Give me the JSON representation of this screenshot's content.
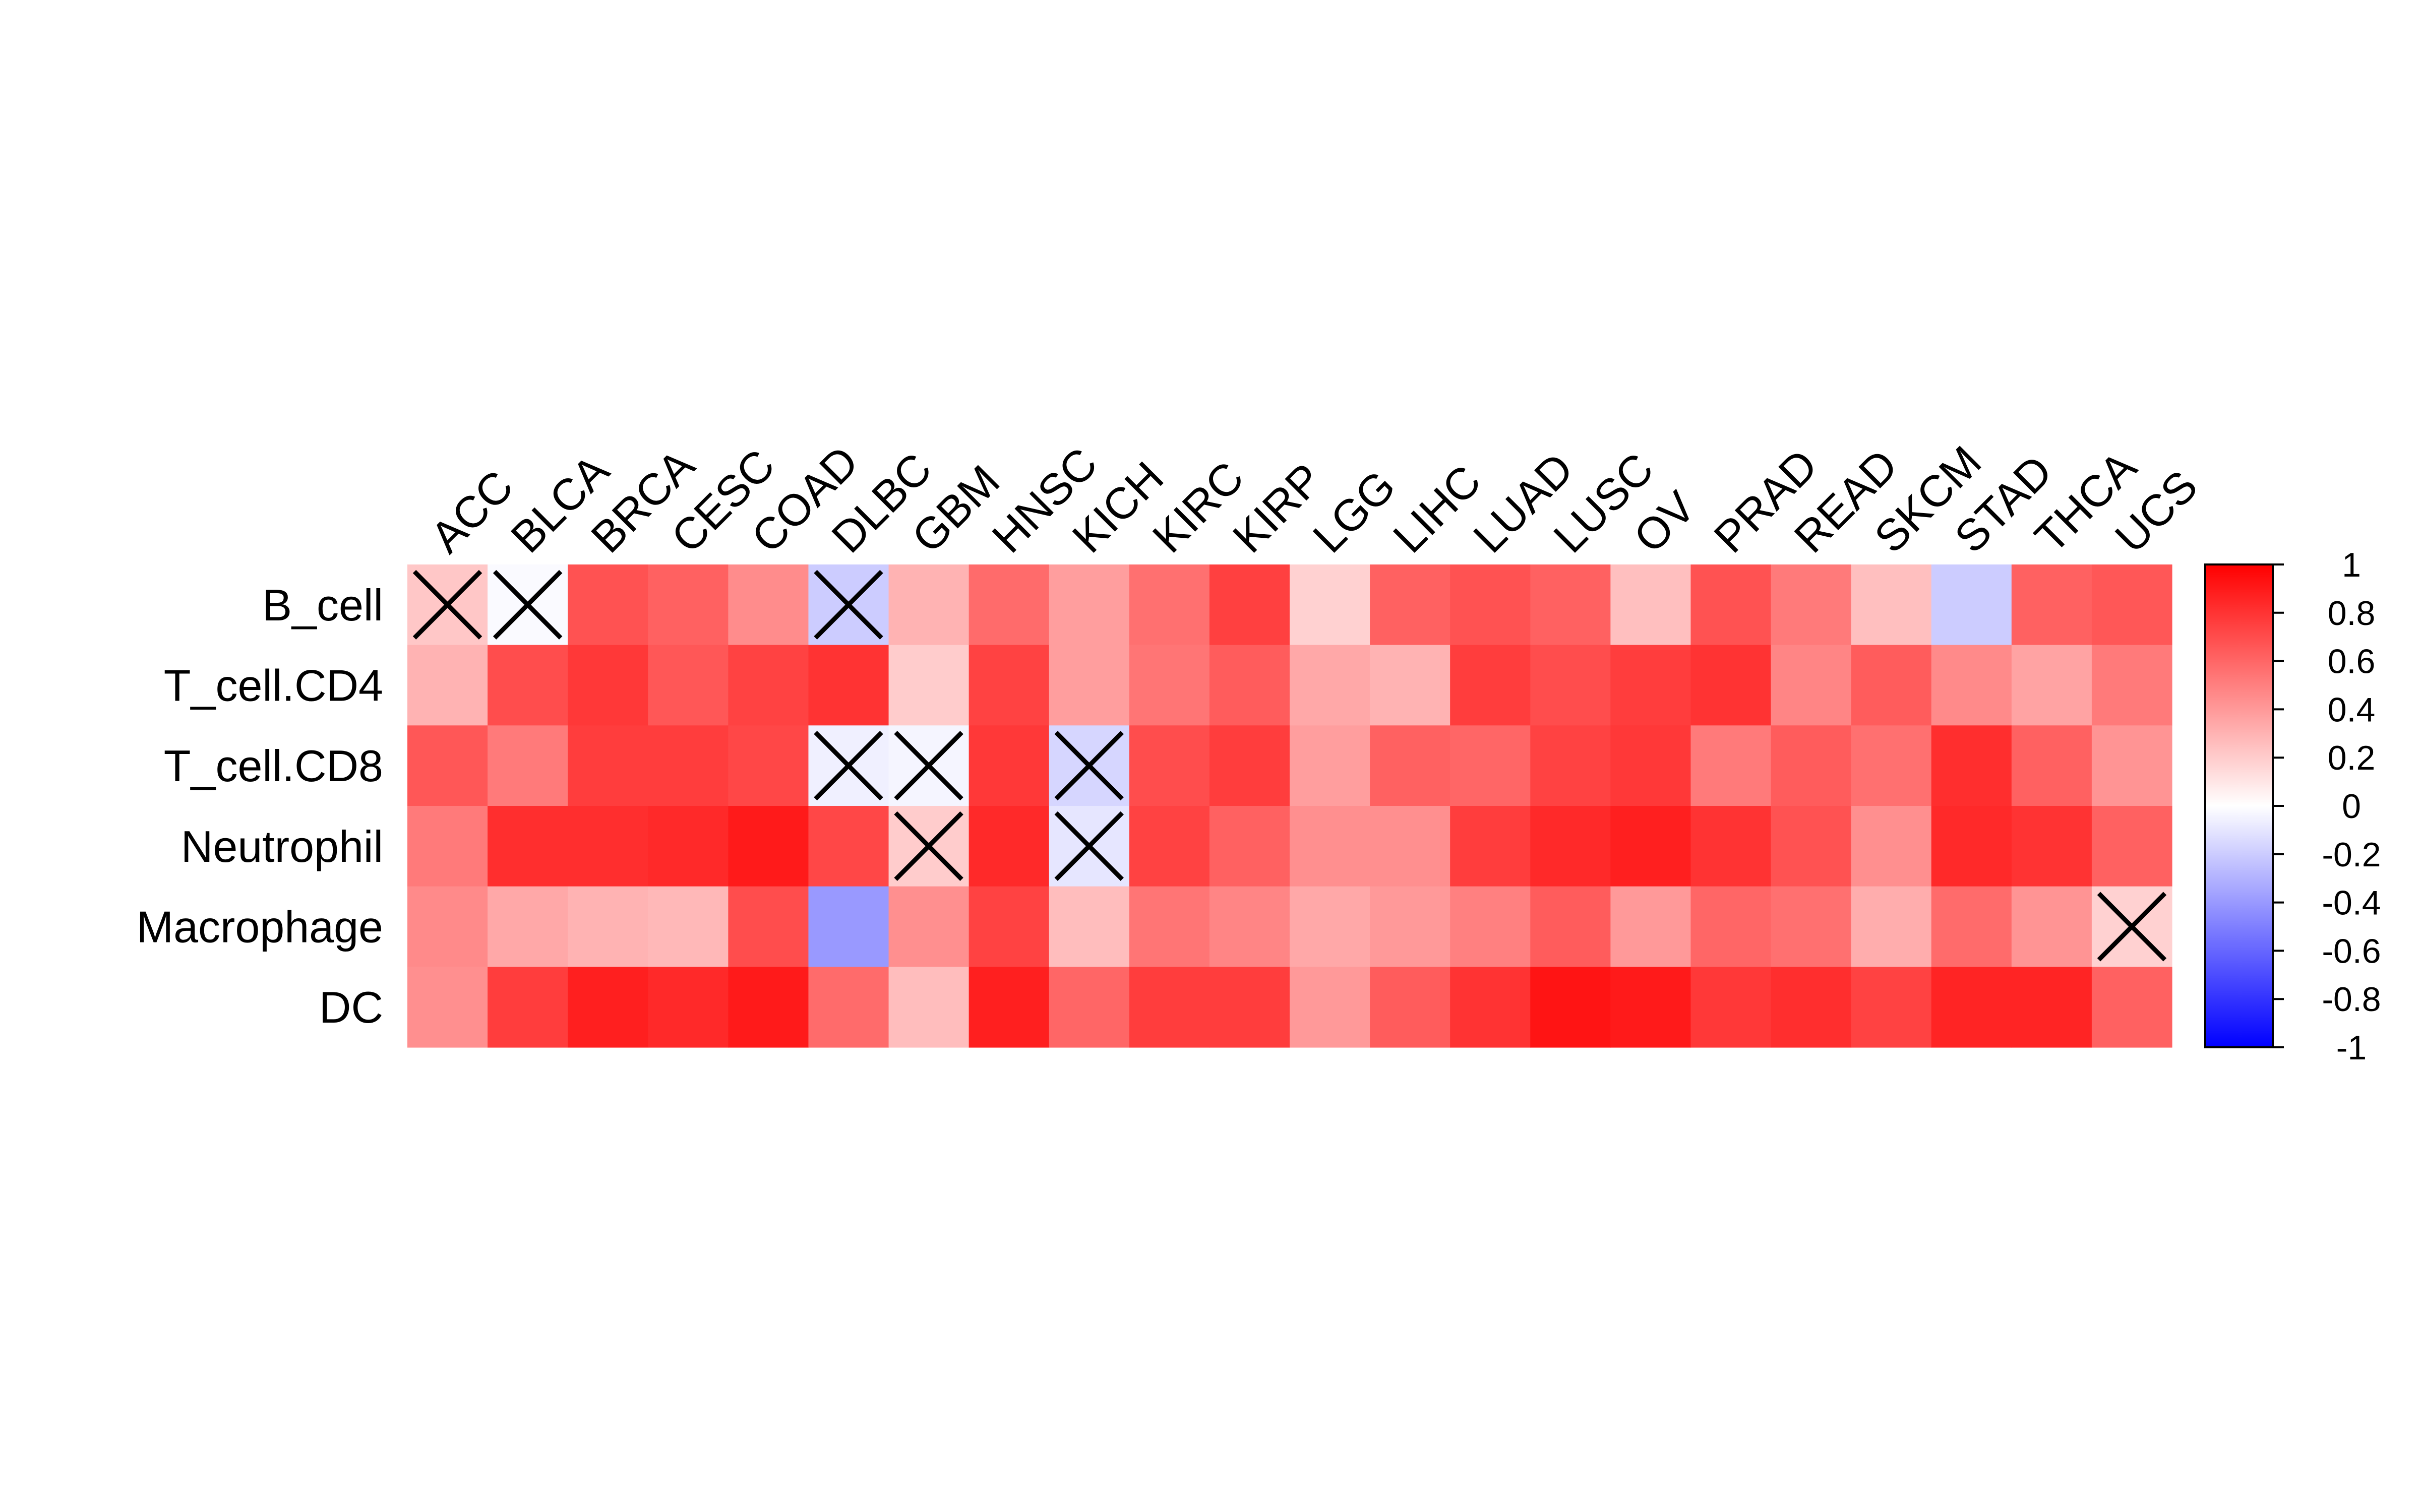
{
  "chart_data": {
    "type": "heatmap",
    "title": "",
    "xlabel": "",
    "ylabel": "",
    "columns": [
      "ACC",
      "BLCA",
      "BRCA",
      "CESC",
      "COAD",
      "DLBC",
      "GBM",
      "HNSC",
      "KICH",
      "KIRC",
      "KIRP",
      "LGG",
      "LIHC",
      "LUAD",
      "LUSC",
      "OV",
      "PRAD",
      "READ",
      "SKCM",
      "STAD",
      "THCA",
      "UCS"
    ],
    "rows": [
      "B_cell",
      "T_cell.CD4",
      "T_cell.CD8",
      "Neutrophil",
      "Macrophage",
      "DC"
    ],
    "values": [
      [
        0.22,
        -0.02,
        0.68,
        0.62,
        0.45,
        -0.2,
        0.3,
        0.58,
        0.38,
        0.56,
        0.75,
        0.18,
        0.62,
        0.68,
        0.62,
        0.25,
        0.68,
        0.52,
        0.25,
        -0.2,
        0.62,
        0.66
      ],
      [
        0.3,
        0.7,
        0.78,
        0.66,
        0.74,
        0.8,
        0.2,
        0.74,
        0.38,
        0.54,
        0.64,
        0.34,
        0.3,
        0.76,
        0.7,
        0.76,
        0.8,
        0.48,
        0.64,
        0.46,
        0.36,
        0.52
      ],
      [
        0.66,
        0.52,
        0.76,
        0.76,
        0.72,
        -0.06,
        -0.04,
        0.78,
        -0.16,
        0.7,
        0.76,
        0.38,
        0.62,
        0.6,
        0.74,
        0.78,
        0.52,
        0.64,
        0.56,
        0.82,
        0.62,
        0.42
      ],
      [
        0.52,
        0.82,
        0.82,
        0.84,
        0.9,
        0.72,
        0.2,
        0.84,
        -0.1,
        0.74,
        0.62,
        0.44,
        0.44,
        0.76,
        0.84,
        0.88,
        0.8,
        0.68,
        0.44,
        0.84,
        0.8,
        0.62
      ],
      [
        0.46,
        0.34,
        0.3,
        0.28,
        0.7,
        -0.4,
        0.44,
        0.74,
        0.26,
        0.54,
        0.48,
        0.34,
        0.4,
        0.5,
        0.64,
        0.4,
        0.6,
        0.56,
        0.32,
        0.58,
        0.42,
        0.18
      ],
      [
        0.44,
        0.76,
        0.88,
        0.84,
        0.9,
        0.58,
        0.26,
        0.88,
        0.6,
        0.76,
        0.76,
        0.4,
        0.64,
        0.8,
        0.92,
        0.9,
        0.78,
        0.82,
        0.74,
        0.86,
        0.86,
        0.62
      ]
    ],
    "crossed": [
      [
        0,
        0
      ],
      [
        0,
        1
      ],
      [
        0,
        5
      ],
      [
        2,
        5
      ],
      [
        2,
        6
      ],
      [
        2,
        8
      ],
      [
        3,
        6
      ],
      [
        3,
        8
      ],
      [
        4,
        21
      ]
    ],
    "colorbar": {
      "range": [
        -1,
        1
      ],
      "ticks": [
        "1",
        "0.8",
        "0.6",
        "0.4",
        "0.2",
        "0",
        "-0.2",
        "-0.4",
        "-0.6",
        "-0.8",
        "-1"
      ],
      "low_color": "#0000ff",
      "mid_color": "#ffffff",
      "high_color": "#ff0000"
    }
  }
}
